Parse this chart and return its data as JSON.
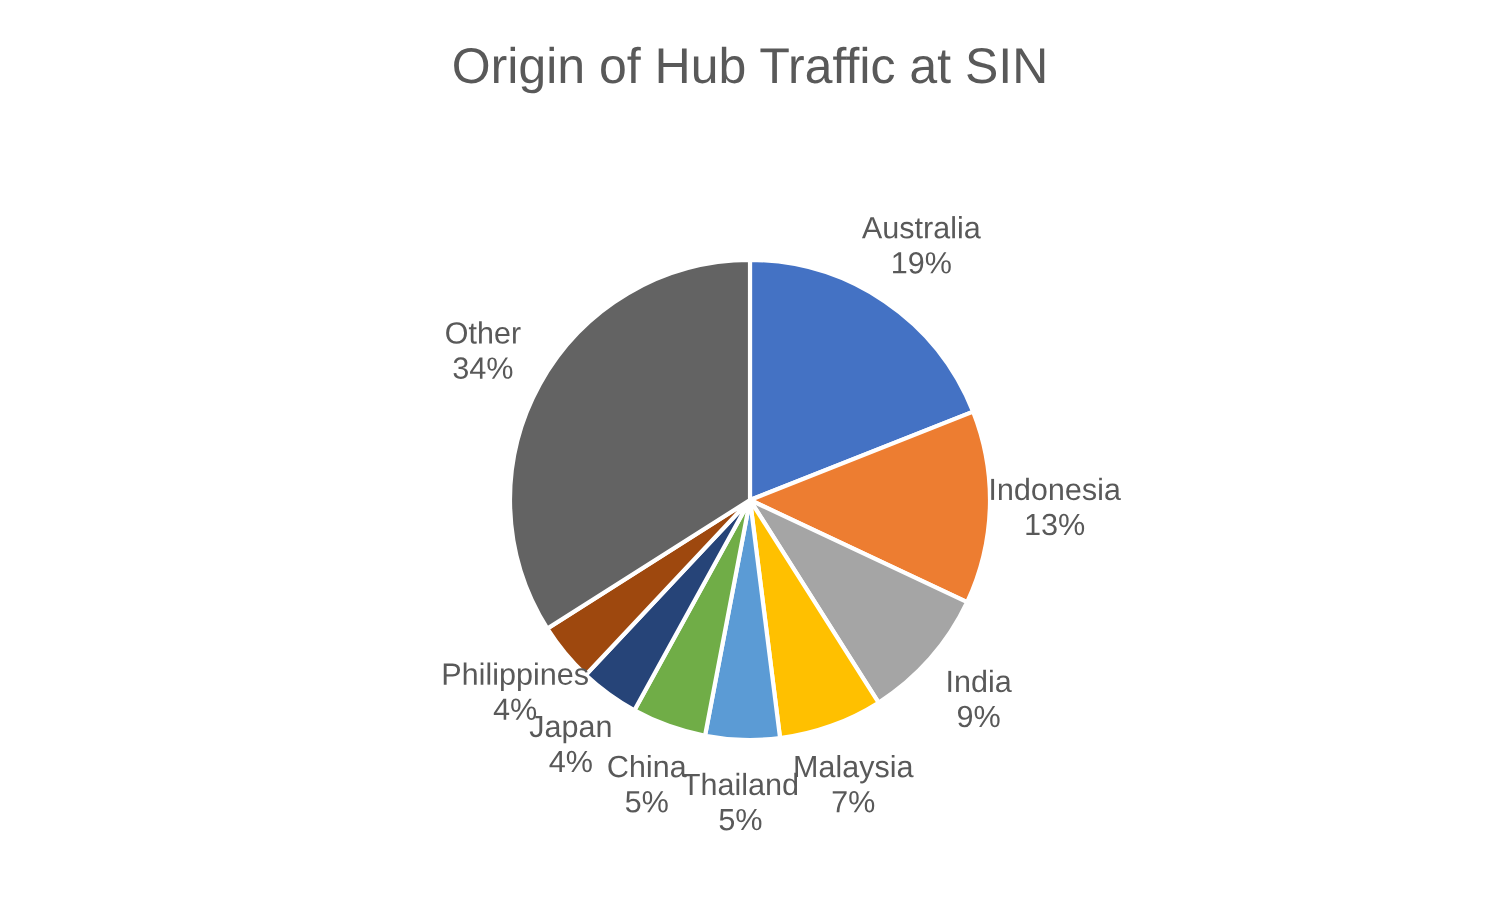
{
  "chart_data": {
    "type": "pie",
    "title": "Origin of Hub Traffic at SIN",
    "categories": [
      "Australia",
      "Indonesia",
      "India",
      "Malaysia",
      "Thailand",
      "China",
      "Japan",
      "Philippines",
      "Other"
    ],
    "values": [
      19,
      13,
      9,
      7,
      5,
      5,
      4,
      4,
      34
    ],
    "value_labels": [
      "19%",
      "13%",
      "9%",
      "7%",
      "5%",
      "5%",
      "4%",
      "4%",
      "34%"
    ],
    "colors": [
      "#4472c4",
      "#ed7d31",
      "#a5a5a5",
      "#ffc000",
      "#5b9bd5",
      "#70ad47",
      "#264478",
      "#9e480e",
      "#636363"
    ],
    "legend": false
  }
}
